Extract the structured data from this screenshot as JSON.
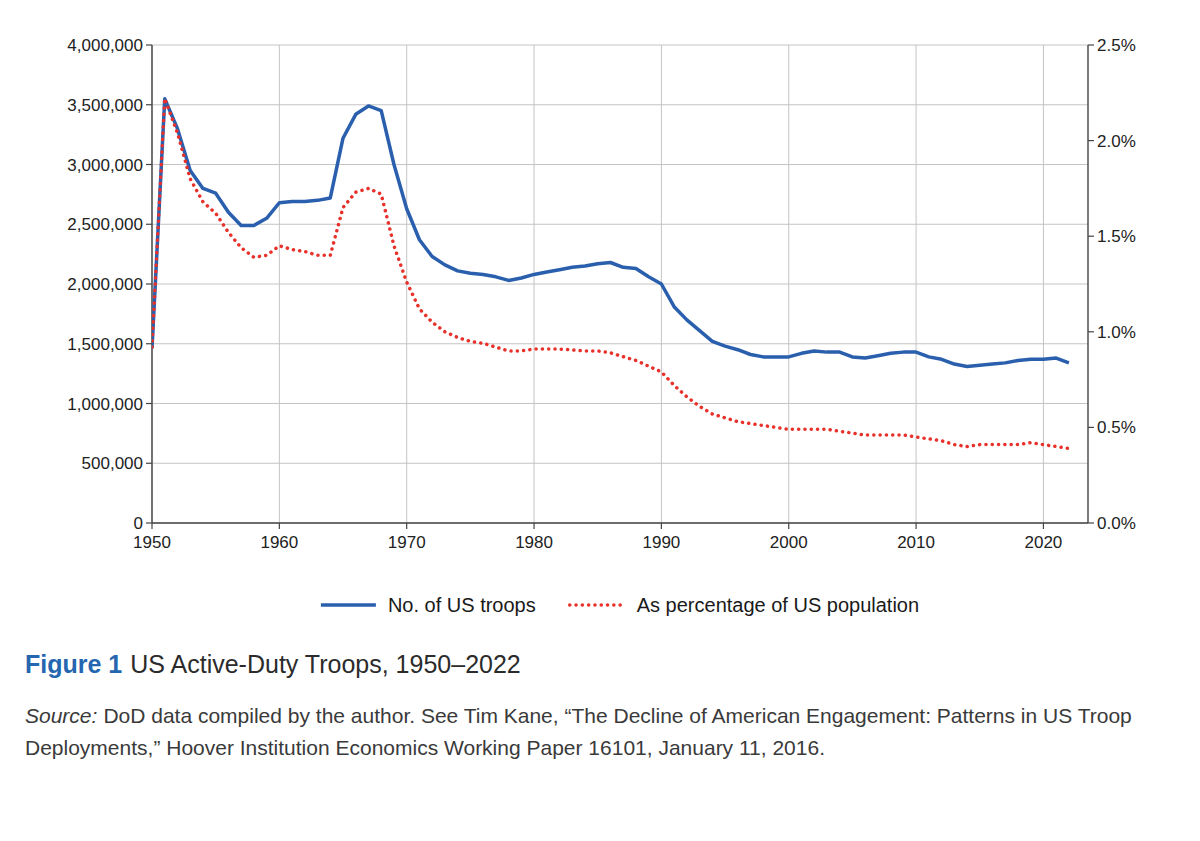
{
  "chart_data": {
    "type": "line",
    "figure_label": "Figure 1",
    "title": "US Active-Duty Troops, 1950–2022",
    "source_label": "Source:",
    "source": "DoD data compiled by the author. See Tim Kane, “The Decline of American Engagement: Patterns in US Troop Deployments,” Hoover Institution Economics Working Paper 16101, January 11, 2016.",
    "x": [
      1950,
      1951,
      1952,
      1953,
      1954,
      1955,
      1956,
      1957,
      1958,
      1959,
      1960,
      1961,
      1962,
      1963,
      1964,
      1965,
      1966,
      1967,
      1968,
      1969,
      1970,
      1971,
      1972,
      1973,
      1974,
      1975,
      1976,
      1977,
      1978,
      1979,
      1980,
      1981,
      1982,
      1983,
      1984,
      1985,
      1986,
      1987,
      1988,
      1989,
      1990,
      1991,
      1992,
      1993,
      1994,
      1995,
      1996,
      1997,
      1998,
      1999,
      2000,
      2001,
      2002,
      2003,
      2004,
      2005,
      2006,
      2007,
      2008,
      2009,
      2010,
      2011,
      2012,
      2013,
      2014,
      2015,
      2016,
      2017,
      2018,
      2019,
      2020,
      2021,
      2022
    ],
    "series": [
      {
        "name": "No. of US troops",
        "color": "#2a5fae",
        "line_style": "solid",
        "values": [
          1460000,
          3550000,
          3300000,
          2950000,
          2800000,
          2760000,
          2600000,
          2490000,
          2490000,
          2550000,
          2680000,
          2690000,
          2690000,
          2700000,
          2720000,
          3220000,
          3420000,
          3490000,
          3450000,
          3000000,
          2630000,
          2370000,
          2230000,
          2160000,
          2110000,
          2090000,
          2080000,
          2060000,
          2030000,
          2050000,
          2080000,
          2100000,
          2120000,
          2140000,
          2150000,
          2170000,
          2180000,
          2140000,
          2130000,
          2060000,
          2000000,
          1810000,
          1700000,
          1610000,
          1520000,
          1480000,
          1450000,
          1410000,
          1390000,
          1390000,
          1390000,
          1420000,
          1440000,
          1430000,
          1430000,
          1390000,
          1380000,
          1400000,
          1420000,
          1430000,
          1430000,
          1390000,
          1370000,
          1330000,
          1310000,
          1320000,
          1330000,
          1340000,
          1360000,
          1370000,
          1370000,
          1380000,
          1340000
        ]
      },
      {
        "name": "As percentage of US population",
        "color": "#e8312a",
        "line_style": "dotted",
        "axis": "y2",
        "values": [
          0.92,
          2.22,
          2.04,
          1.8,
          1.68,
          1.62,
          1.52,
          1.44,
          1.39,
          1.4,
          1.45,
          1.43,
          1.42,
          1.4,
          1.4,
          1.65,
          1.73,
          1.75,
          1.72,
          1.45,
          1.26,
          1.12,
          1.05,
          1.0,
          0.97,
          0.95,
          0.94,
          0.92,
          0.9,
          0.9,
          0.91,
          0.91,
          0.91,
          0.905,
          0.9,
          0.9,
          0.89,
          0.87,
          0.85,
          0.82,
          0.79,
          0.72,
          0.66,
          0.61,
          0.57,
          0.55,
          0.53,
          0.52,
          0.51,
          0.5,
          0.49,
          0.49,
          0.49,
          0.49,
          0.48,
          0.47,
          0.46,
          0.46,
          0.46,
          0.46,
          0.45,
          0.44,
          0.43,
          0.41,
          0.4,
          0.41,
          0.41,
          0.41,
          0.41,
          0.42,
          0.41,
          0.4,
          0.39
        ]
      }
    ],
    "xlim": [
      1950,
      2023.5
    ],
    "xticks": [
      1950,
      1960,
      1970,
      1980,
      1990,
      2000,
      2010,
      2020
    ],
    "ylim": [
      0,
      4000000
    ],
    "yticks": [
      0,
      {
        "value": 500000,
        "label": "500,000"
      },
      {
        "value": 1000000,
        "label": "1,000,000"
      },
      {
        "value": 1500000,
        "label": "1,500,000"
      },
      {
        "value": 2000000,
        "label": "2,000,000"
      },
      {
        "value": 2500000,
        "label": "2,500,000"
      },
      {
        "value": 3000000,
        "label": "3,000,000"
      },
      {
        "value": 3500000,
        "label": "3,500,000"
      },
      {
        "value": 4000000,
        "label": "4,000,000"
      }
    ],
    "y2lim": [
      0,
      2.5
    ],
    "y2ticks": [
      {
        "value": 0,
        "label": "0.0%"
      },
      {
        "value": 0.5,
        "label": "0.5%"
      },
      {
        "value": 1,
        "label": "1.0%"
      },
      {
        "value": 1.5,
        "label": "1.5%"
      },
      {
        "value": 2,
        "label": "2.0%"
      },
      {
        "value": 2.5,
        "label": "2.5%"
      }
    ],
    "grid": true,
    "legend": "bottom"
  }
}
